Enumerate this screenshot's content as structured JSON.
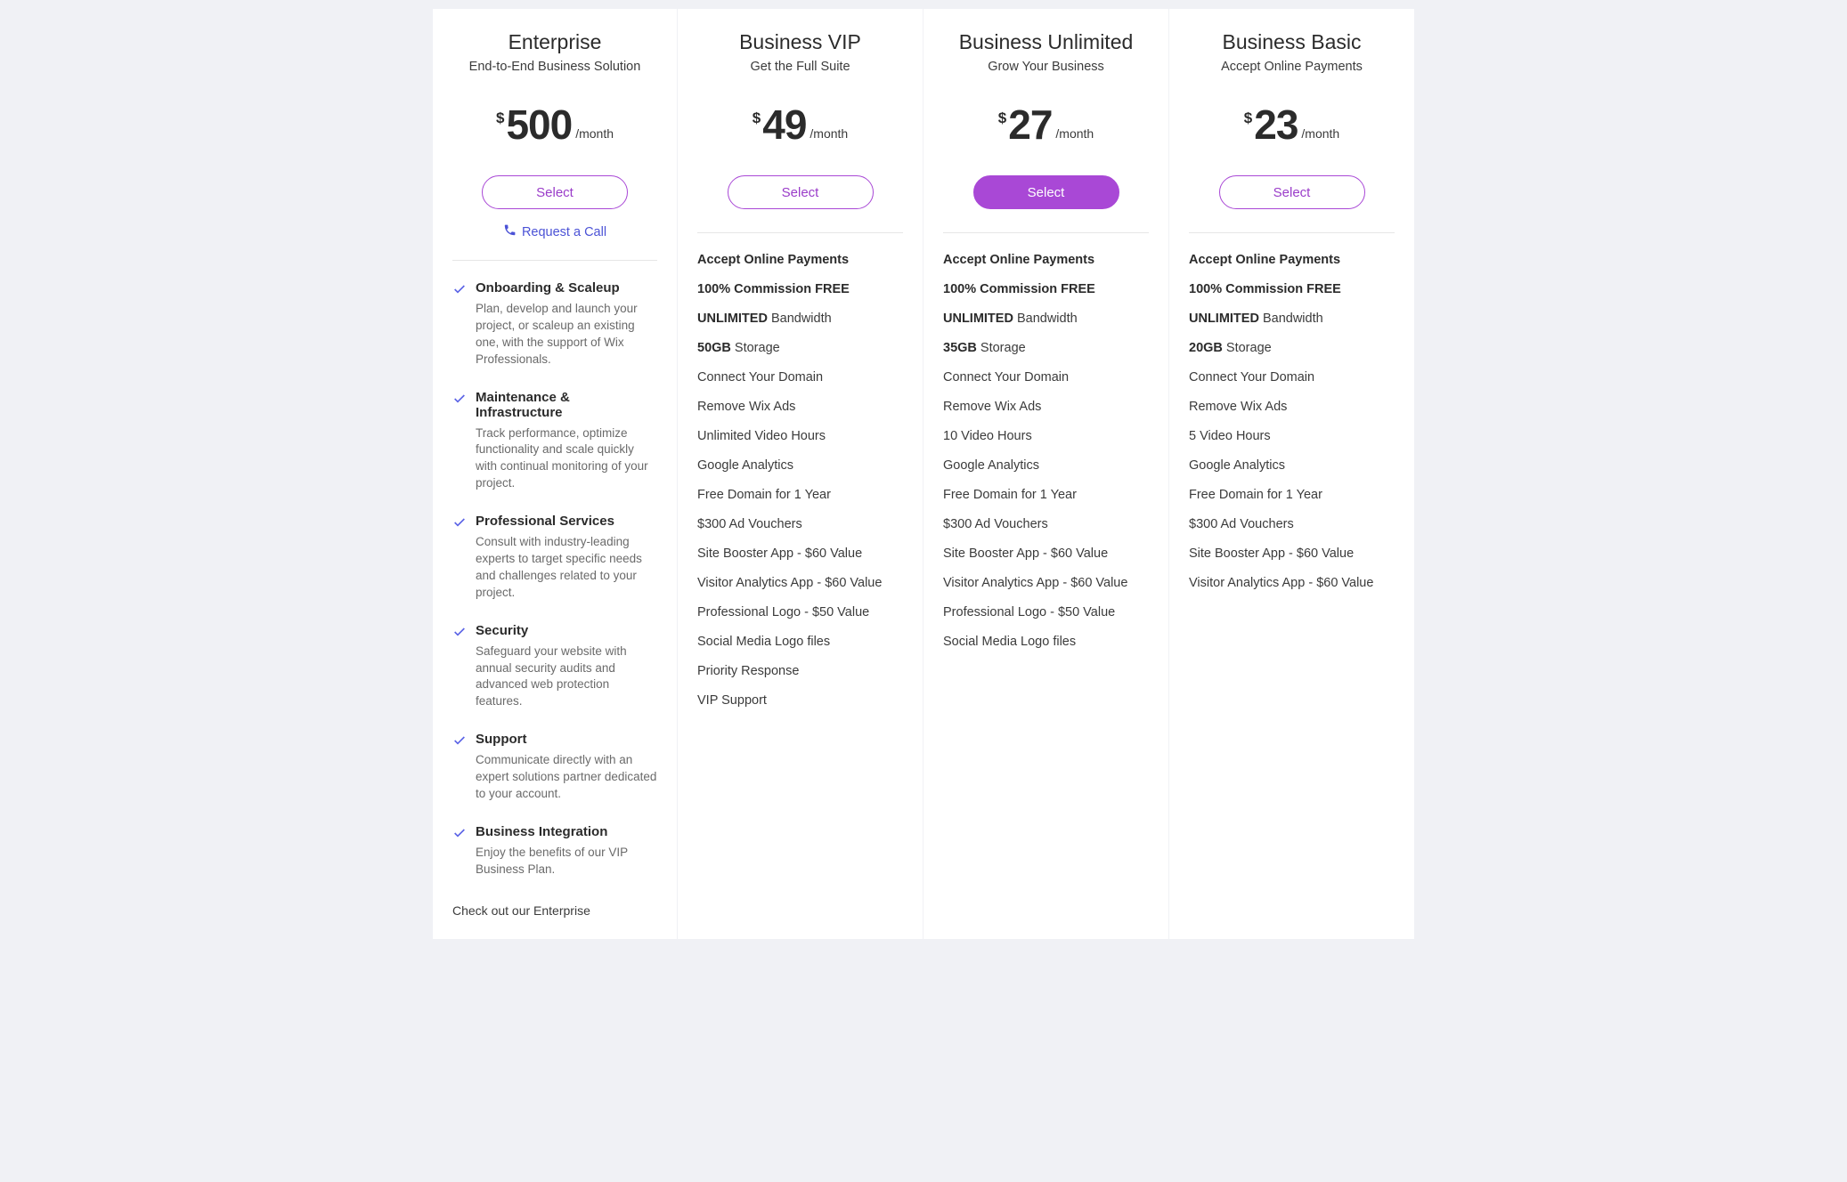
{
  "common": {
    "currency": "$",
    "per_month": "/month",
    "select_label": "Select"
  },
  "colors": {
    "background": "#f0f1f5",
    "card_bg": "#ffffff",
    "accent_purple": "#a948d6",
    "link_blue": "#4b52d6",
    "check_stroke": "#5b63e6",
    "text_primary": "#2b2b2b",
    "text_secondary": "#6a6a6a",
    "divider": "#e6e6e6"
  },
  "plans": {
    "enterprise": {
      "title": "Enterprise",
      "subtitle": "End-to-End Business Solution",
      "price": "500",
      "request_call": "Request a Call",
      "items": [
        {
          "title": "Onboarding & Scaleup",
          "desc": "Plan, develop and launch your project, or scaleup an existing one, with the support of Wix Professionals."
        },
        {
          "title": "Maintenance & Infrastructure",
          "desc": "Track performance, optimize functionality and scale quickly with continual monitoring of your project."
        },
        {
          "title": "Professional Services",
          "desc": "Consult with industry-leading experts to target specific needs and challenges related to your project."
        },
        {
          "title": "Security",
          "desc": "Safeguard your website with annual security audits and advanced web protection features."
        },
        {
          "title": "Support",
          "desc": "Communicate directly with an expert solutions partner dedicated to your account."
        },
        {
          "title": "Business Integration",
          "desc": "Enjoy the benefits of our VIP Business Plan."
        }
      ],
      "footer_text": "Check out our Enterprise"
    },
    "vip": {
      "title": "Business VIP",
      "subtitle": "Get the Full Suite",
      "price": "49",
      "features": [
        {
          "bold": "Accept Online Payments",
          "rest": ""
        },
        {
          "bold": "100% Commission FREE",
          "rest": ""
        },
        {
          "bold": "UNLIMITED",
          "rest": " Bandwidth"
        },
        {
          "bold": "50GB",
          "rest": " Storage"
        },
        {
          "bold": "",
          "rest": "Connect Your Domain"
        },
        {
          "bold": "",
          "rest": "Remove Wix Ads"
        },
        {
          "bold": "",
          "rest": "Unlimited Video Hours"
        },
        {
          "bold": "",
          "rest": "Google Analytics"
        },
        {
          "bold": "",
          "rest": "Free Domain for 1 Year"
        },
        {
          "bold": "",
          "rest": "$300 Ad Vouchers"
        },
        {
          "bold": "",
          "rest": "Site Booster App - $60 Value"
        },
        {
          "bold": "",
          "rest": "Visitor Analytics App - $60 Value"
        },
        {
          "bold": "",
          "rest": "Professional Logo - $50 Value"
        },
        {
          "bold": "",
          "rest": "Social Media Logo files"
        },
        {
          "bold": "",
          "rest": "Priority Response"
        },
        {
          "bold": "",
          "rest": "VIP Support"
        }
      ]
    },
    "unlimited": {
      "title": "Business Unlimited",
      "subtitle": "Grow Your Business",
      "price": "27",
      "highlighted": true,
      "features": [
        {
          "bold": "Accept Online Payments",
          "rest": ""
        },
        {
          "bold": "100% Commission FREE",
          "rest": ""
        },
        {
          "bold": "UNLIMITED",
          "rest": " Bandwidth"
        },
        {
          "bold": "35GB",
          "rest": " Storage"
        },
        {
          "bold": "",
          "rest": "Connect Your Domain"
        },
        {
          "bold": "",
          "rest": "Remove Wix Ads"
        },
        {
          "bold": "",
          "rest": "10 Video Hours"
        },
        {
          "bold": "",
          "rest": "Google Analytics"
        },
        {
          "bold": "",
          "rest": "Free Domain for 1 Year"
        },
        {
          "bold": "",
          "rest": "$300 Ad Vouchers"
        },
        {
          "bold": "",
          "rest": "Site Booster App - $60 Value"
        },
        {
          "bold": "",
          "rest": "Visitor Analytics App - $60 Value"
        },
        {
          "bold": "",
          "rest": "Professional Logo - $50 Value"
        },
        {
          "bold": "",
          "rest": "Social Media Logo files"
        }
      ]
    },
    "basic": {
      "title": "Business Basic",
      "subtitle": "Accept Online Payments",
      "price": "23",
      "features": [
        {
          "bold": "Accept Online Payments",
          "rest": ""
        },
        {
          "bold": "100% Commission FREE",
          "rest": ""
        },
        {
          "bold": "UNLIMITED",
          "rest": " Bandwidth"
        },
        {
          "bold": "20GB",
          "rest": " Storage"
        },
        {
          "bold": "",
          "rest": "Connect Your Domain"
        },
        {
          "bold": "",
          "rest": "Remove Wix Ads"
        },
        {
          "bold": "",
          "rest": "5 Video Hours"
        },
        {
          "bold": "",
          "rest": "Google Analytics"
        },
        {
          "bold": "",
          "rest": "Free Domain for 1 Year"
        },
        {
          "bold": "",
          "rest": "$300 Ad Vouchers"
        },
        {
          "bold": "",
          "rest": "Site Booster App - $60 Value"
        },
        {
          "bold": "",
          "rest": "Visitor Analytics App - $60 Value"
        }
      ]
    }
  }
}
